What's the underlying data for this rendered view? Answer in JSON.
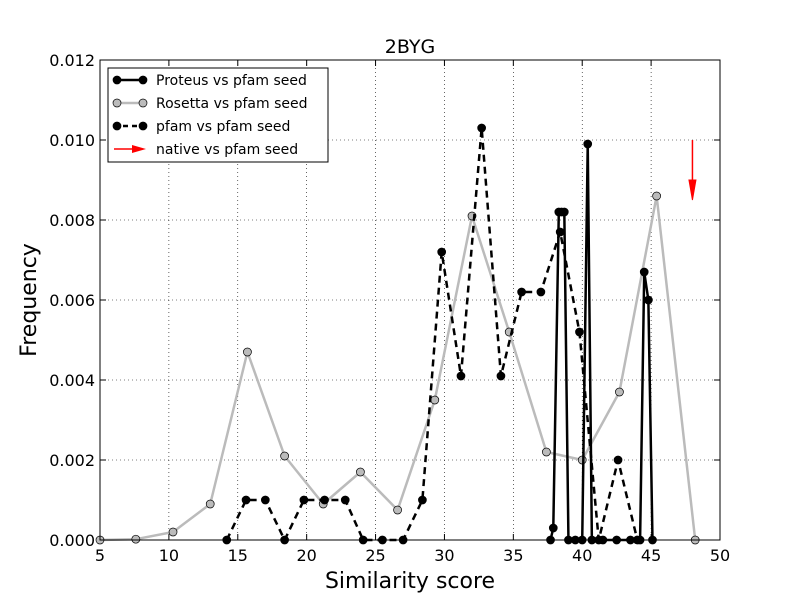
{
  "chart_data": {
    "type": "line",
    "title": "2BYG",
    "xlabel": "Similarity score",
    "ylabel": "Frequency",
    "xlim": [
      5,
      50
    ],
    "ylim": [
      0,
      0.012
    ],
    "xticks": [
      "5",
      "10",
      "15",
      "20",
      "25",
      "30",
      "35",
      "40",
      "45",
      "50"
    ],
    "yticks": [
      "0.000",
      "0.002",
      "0.004",
      "0.006",
      "0.008",
      "0.010",
      "0.012"
    ],
    "grid": true,
    "legend_position": "top-left",
    "series": [
      {
        "name": "Proteus vs pfam seed",
        "color": "#000000",
        "linestyle": "solid",
        "marker": "circle",
        "marker_fill": "#000000",
        "x": [
          37.7,
          37.9,
          38.3,
          38.5,
          38.7,
          39.0,
          39.5,
          40.0,
          40.4,
          40.7,
          41.5,
          42.5,
          43.5,
          44.2,
          44.5,
          44.8,
          45.1
        ],
        "y": [
          0.0,
          0.0003,
          0.0082,
          0.0082,
          0.0082,
          0.0,
          0.0,
          0.0,
          0.0099,
          0.0,
          0.0,
          0.0,
          0.0,
          0.0,
          0.0067,
          0.006,
          0.0
        ]
      },
      {
        "name": "Rosetta vs pfam seed",
        "color": "#bbbbbb",
        "linestyle": "solid",
        "marker": "circle",
        "marker_fill": "#bbbbbb",
        "x": [
          5.0,
          7.6,
          10.3,
          13.0,
          15.7,
          18.4,
          21.2,
          23.9,
          26.6,
          29.3,
          32.0,
          34.7,
          37.4,
          40.0,
          42.7,
          45.4,
          48.2
        ],
        "y": [
          0.0,
          2e-05,
          0.0002,
          0.0009,
          0.0047,
          0.0021,
          0.0009,
          0.0017,
          0.00075,
          0.0035,
          0.0081,
          0.0052,
          0.0022,
          0.002,
          0.0037,
          0.0086,
          0.0
        ]
      },
      {
        "name": "pfam vs pfam seed",
        "color": "#000000",
        "linestyle": "dashed",
        "marker": "circle",
        "marker_fill": "#000000",
        "x": [
          14.2,
          15.6,
          17.0,
          18.4,
          19.8,
          21.3,
          22.8,
          24.1,
          25.5,
          27.0,
          28.4,
          29.8,
          31.2,
          32.7,
          34.1,
          35.6,
          37.0,
          38.4,
          39.8,
          41.2,
          42.6,
          44.0
        ],
        "y": [
          0.0,
          0.001,
          0.001,
          0.0,
          0.001,
          0.001,
          0.001,
          0.0,
          0.0,
          0.0,
          0.001,
          0.0072,
          0.0041,
          0.0103,
          0.0041,
          0.0062,
          0.0062,
          0.0077,
          0.0052,
          0.0,
          0.002,
          0.0
        ]
      },
      {
        "name": "native vs pfam seed",
        "color": "#ff0000",
        "linestyle": "arrow",
        "x": [
          48.0
        ],
        "y": [
          0.0085
        ]
      }
    ]
  }
}
